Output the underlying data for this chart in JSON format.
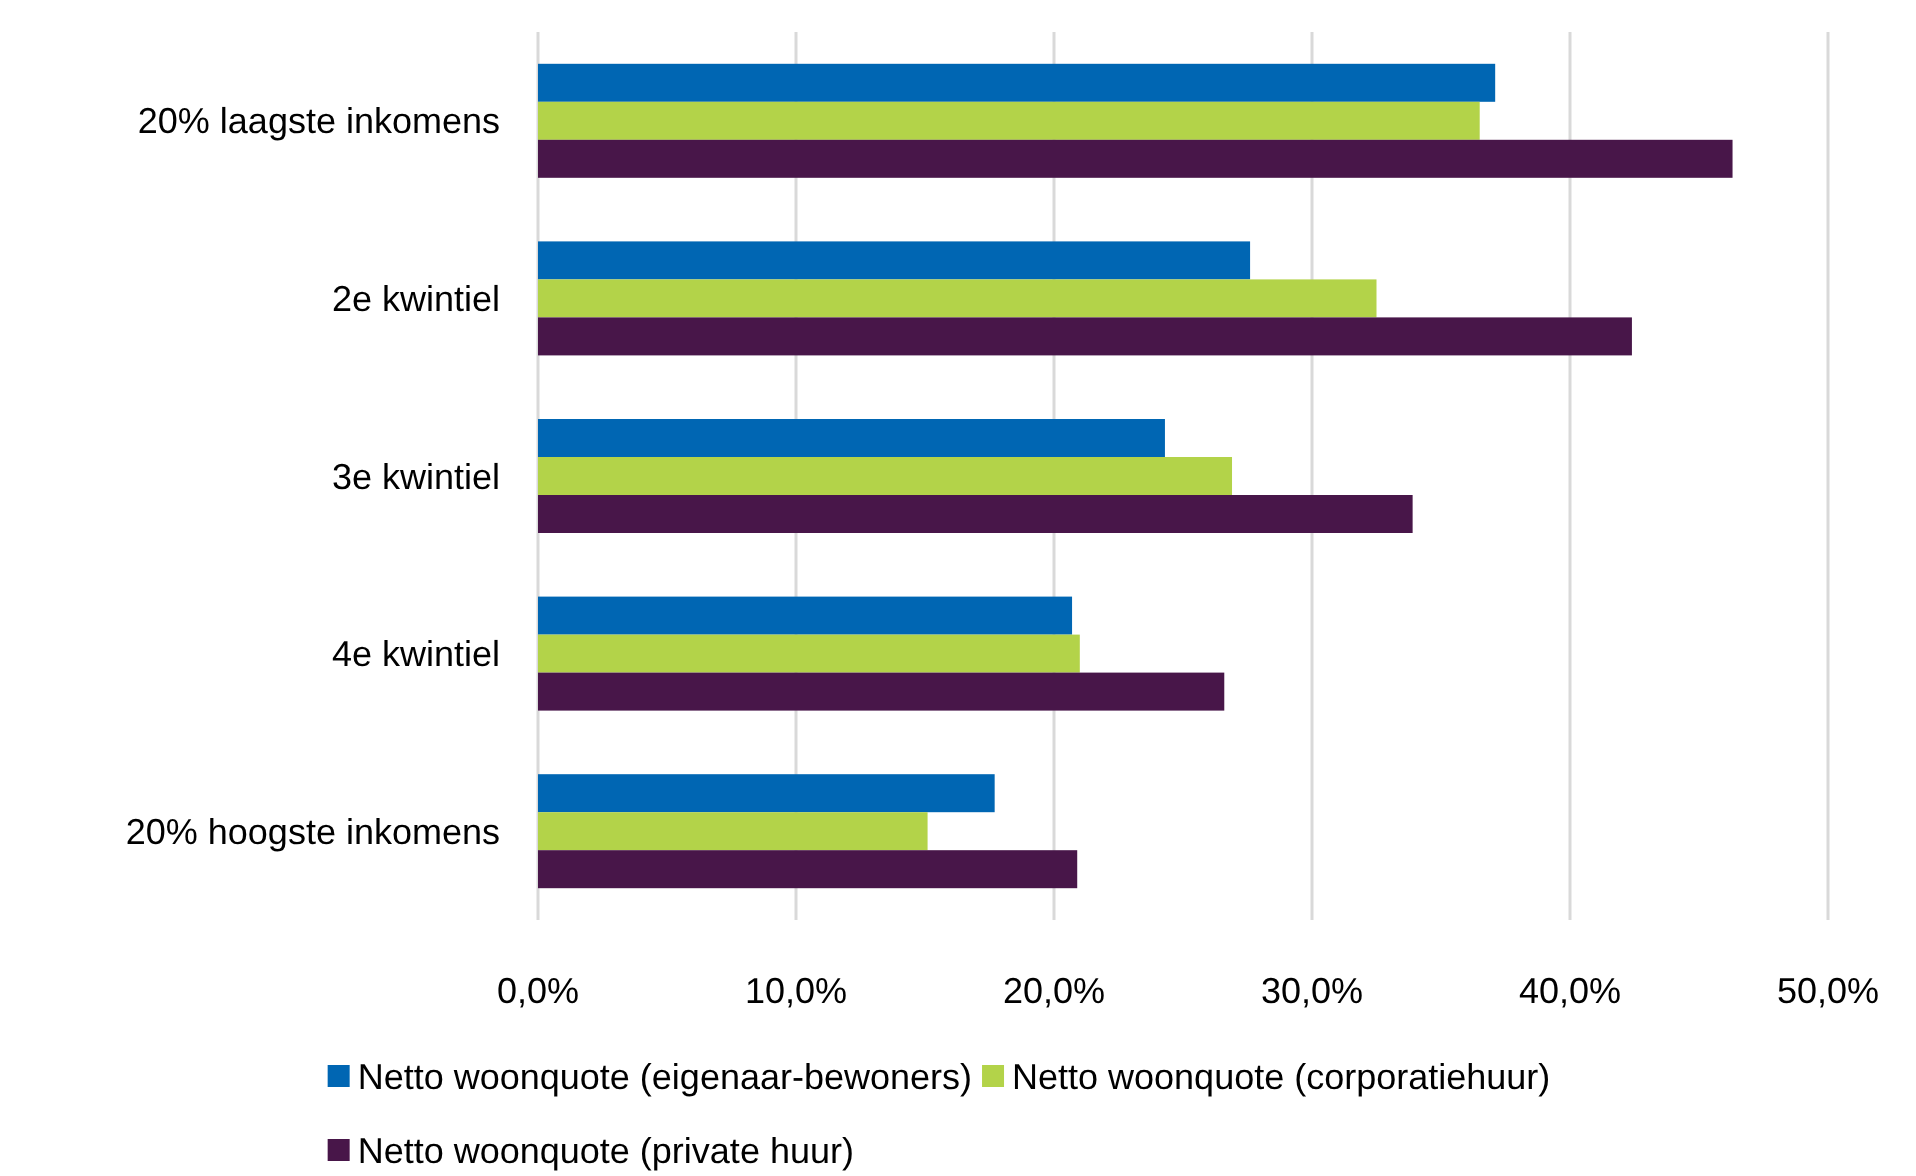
{
  "chart_data": {
    "type": "bar",
    "orientation": "horizontal",
    "categories": [
      "20% laagste inkomens",
      "2e kwintiel",
      "3e kwintiel",
      "4e kwintiel",
      "20% hoogste inkomens"
    ],
    "series": [
      {
        "name": "Netto woonquote (eigenaar-bewoners)",
        "color": "#0066b3",
        "values": [
          37.1,
          27.6,
          24.3,
          20.7,
          17.7
        ]
      },
      {
        "name": "Netto woonquote (corporatiehuur)",
        "color": "#b3d349",
        "values": [
          36.5,
          32.5,
          26.9,
          21.0,
          15.1
        ]
      },
      {
        "name": "Netto woonquote (private huur)",
        "color": "#481649",
        "values": [
          46.3,
          42.4,
          33.9,
          26.6,
          20.9
        ]
      }
    ],
    "xlim": [
      0,
      50
    ],
    "xticks": [
      {
        "value": 0,
        "label": "0,0%"
      },
      {
        "value": 10,
        "label": "10,0%"
      },
      {
        "value": 20,
        "label": "20,0%"
      },
      {
        "value": 30,
        "label": "30,0%"
      },
      {
        "value": 40,
        "label": "40,0%"
      },
      {
        "value": 50,
        "label": "50,0%"
      }
    ],
    "grid": "x",
    "legend": "bottom"
  }
}
